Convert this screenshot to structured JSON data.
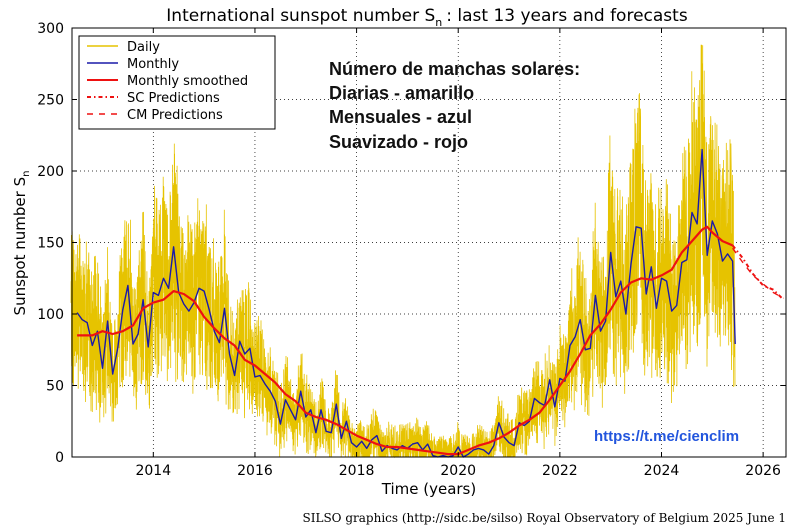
{
  "chart_data": {
    "type": "line",
    "title": "International sunspot number S",
    "title_sub": "n",
    "title_suffix": ": last 13 years and forecasts",
    "xlabel": "Time (years)",
    "ylabel": "Sunspot number S",
    "ylabel_sub": "n",
    "xlim": [
      2012.4,
      2026.45
    ],
    "ylim": [
      0,
      300
    ],
    "xticks": [
      2014,
      2016,
      2018,
      2020,
      2022,
      2024,
      2026
    ],
    "yticks": [
      0,
      50,
      100,
      150,
      200,
      250,
      300
    ],
    "grid": true,
    "legend_position": "top-left",
    "legend": [
      {
        "label": "Daily",
        "color": "#e6c300",
        "style": "solid"
      },
      {
        "label": "Monthly",
        "color": "#1a1aa8",
        "style": "solid"
      },
      {
        "label": "Monthly smoothed",
        "color": "#ee1111",
        "style": "solid"
      },
      {
        "label": "SC Predictions",
        "color": "#ee1111",
        "style": "dashdot"
      },
      {
        "label": "CM Predictions",
        "color": "#ee1111",
        "style": "dashed"
      }
    ],
    "annotation_lines": [
      "Número de manchas solares:",
      "Diarias - amarillo",
      "Mensuales - azul",
      "Suavizado - rojo"
    ],
    "url_text": "https://t.me/cienclim",
    "credit": "SILSO graphics (http://sidc.be/silso)  Royal Observatory of Belgium  2025 June 1",
    "series": [
      {
        "name": "Monthly",
        "color": "#1a1aa8",
        "points": [
          [
            2012.5,
            101
          ],
          [
            2012.6,
            96
          ],
          [
            2012.7,
            94
          ],
          [
            2012.8,
            78
          ],
          [
            2012.9,
            88
          ],
          [
            2013.0,
            62
          ],
          [
            2013.1,
            95
          ],
          [
            2013.2,
            58
          ],
          [
            2013.3,
            76
          ],
          [
            2013.4,
            103
          ],
          [
            2013.5,
            120
          ],
          [
            2013.6,
            79
          ],
          [
            2013.7,
            86
          ],
          [
            2013.8,
            110
          ],
          [
            2013.9,
            77
          ],
          [
            2014.0,
            115
          ],
          [
            2014.1,
            113
          ],
          [
            2014.2,
            125
          ],
          [
            2014.3,
            118
          ],
          [
            2014.4,
            147
          ],
          [
            2014.5,
            115
          ],
          [
            2014.6,
            107
          ],
          [
            2014.7,
            102
          ],
          [
            2014.8,
            108
          ],
          [
            2014.9,
            118
          ],
          [
            2015.0,
            116
          ],
          [
            2015.1,
            103
          ],
          [
            2015.2,
            88
          ],
          [
            2015.3,
            80
          ],
          [
            2015.4,
            104
          ],
          [
            2015.5,
            72
          ],
          [
            2015.6,
            57
          ],
          [
            2015.7,
            81
          ],
          [
            2015.8,
            72
          ],
          [
            2015.9,
            76
          ],
          [
            2016.0,
            56
          ],
          [
            2016.1,
            57
          ],
          [
            2016.2,
            51
          ],
          [
            2016.3,
            46
          ],
          [
            2016.4,
            39
          ],
          [
            2016.5,
            23
          ],
          [
            2016.6,
            40
          ],
          [
            2016.7,
            33
          ],
          [
            2016.8,
            26
          ],
          [
            2016.9,
            46
          ],
          [
            2017.0,
            28
          ],
          [
            2017.1,
            33
          ],
          [
            2017.2,
            17
          ],
          [
            2017.3,
            33
          ],
          [
            2017.4,
            18
          ],
          [
            2017.5,
            17
          ],
          [
            2017.6,
            37
          ],
          [
            2017.7,
            13
          ],
          [
            2017.8,
            25
          ],
          [
            2017.9,
            10
          ],
          [
            2018.0,
            7
          ],
          [
            2018.1,
            11
          ],
          [
            2018.2,
            6
          ],
          [
            2018.3,
            12
          ],
          [
            2018.4,
            15
          ],
          [
            2018.5,
            4
          ],
          [
            2018.6,
            8
          ],
          [
            2018.7,
            6
          ],
          [
            2018.8,
            5
          ],
          [
            2018.9,
            8
          ],
          [
            2019.0,
            6
          ],
          [
            2019.1,
            9
          ],
          [
            2019.2,
            10
          ],
          [
            2019.3,
            5
          ],
          [
            2019.4,
            9
          ],
          [
            2019.5,
            1
          ],
          [
            2019.6,
            0
          ],
          [
            2019.7,
            1
          ],
          [
            2019.8,
            0
          ],
          [
            2019.9,
            1
          ],
          [
            2020.0,
            7
          ],
          [
            2020.1,
            0
          ],
          [
            2020.2,
            2
          ],
          [
            2020.3,
            5
          ],
          [
            2020.4,
            6
          ],
          [
            2020.5,
            5
          ],
          [
            2020.6,
            2
          ],
          [
            2020.7,
            8
          ],
          [
            2020.8,
            24
          ],
          [
            2020.9,
            14
          ],
          [
            2021.0,
            10
          ],
          [
            2021.1,
            8
          ],
          [
            2021.2,
            24
          ],
          [
            2021.3,
            22
          ],
          [
            2021.4,
            25
          ],
          [
            2021.5,
            41
          ],
          [
            2021.6,
            38
          ],
          [
            2021.7,
            36
          ],
          [
            2021.8,
            54
          ],
          [
            2021.9,
            35
          ],
          [
            2022.0,
            55
          ],
          [
            2022.1,
            53
          ],
          [
            2022.2,
            78
          ],
          [
            2022.3,
            84
          ],
          [
            2022.4,
            96
          ],
          [
            2022.5,
            75
          ],
          [
            2022.6,
            76
          ],
          [
            2022.7,
            113
          ],
          [
            2022.8,
            88
          ],
          [
            2022.9,
            95
          ],
          [
            2023.0,
            143
          ],
          [
            2023.1,
            112
          ],
          [
            2023.2,
            123
          ],
          [
            2023.3,
            100
          ],
          [
            2023.4,
            135
          ],
          [
            2023.5,
            161
          ],
          [
            2023.6,
            160
          ],
          [
            2023.7,
            114
          ],
          [
            2023.8,
            133
          ],
          [
            2023.9,
            104
          ],
          [
            2024.0,
            125
          ],
          [
            2024.1,
            123
          ],
          [
            2024.2,
            102
          ],
          [
            2024.3,
            106
          ],
          [
            2024.4,
            136
          ],
          [
            2024.5,
            138
          ],
          [
            2024.6,
            171
          ],
          [
            2024.7,
            163
          ],
          [
            2024.8,
            215
          ],
          [
            2024.9,
            141
          ],
          [
            2025.0,
            165
          ],
          [
            2025.1,
            156
          ],
          [
            2025.2,
            137
          ],
          [
            2025.3,
            142
          ],
          [
            2025.4,
            137
          ],
          [
            2025.45,
            79
          ]
        ]
      },
      {
        "name": "Monthly smoothed",
        "color": "#ee1111",
        "points": [
          [
            2012.5,
            85
          ],
          [
            2012.8,
            85
          ],
          [
            2013.0,
            88
          ],
          [
            2013.2,
            86
          ],
          [
            2013.4,
            88
          ],
          [
            2013.6,
            92
          ],
          [
            2013.8,
            104
          ],
          [
            2014.0,
            108
          ],
          [
            2014.2,
            110
          ],
          [
            2014.4,
            116
          ],
          [
            2014.6,
            114
          ],
          [
            2014.8,
            109
          ],
          [
            2015.0,
            98
          ],
          [
            2015.2,
            90
          ],
          [
            2015.4,
            83
          ],
          [
            2015.6,
            78
          ],
          [
            2015.8,
            68
          ],
          [
            2016.0,
            64
          ],
          [
            2016.2,
            58
          ],
          [
            2016.4,
            52
          ],
          [
            2016.6,
            44
          ],
          [
            2016.8,
            39
          ],
          [
            2017.0,
            31
          ],
          [
            2017.2,
            28
          ],
          [
            2017.4,
            26
          ],
          [
            2017.6,
            23
          ],
          [
            2017.8,
            19
          ],
          [
            2018.0,
            15
          ],
          [
            2018.2,
            12
          ],
          [
            2018.4,
            9
          ],
          [
            2018.6,
            7
          ],
          [
            2018.8,
            7
          ],
          [
            2019.0,
            6
          ],
          [
            2019.2,
            5
          ],
          [
            2019.4,
            4
          ],
          [
            2019.6,
            3
          ],
          [
            2019.8,
            2
          ],
          [
            2020.0,
            2
          ],
          [
            2020.2,
            5
          ],
          [
            2020.4,
            8
          ],
          [
            2020.6,
            10
          ],
          [
            2020.8,
            13
          ],
          [
            2021.0,
            17
          ],
          [
            2021.2,
            22
          ],
          [
            2021.4,
            26
          ],
          [
            2021.6,
            31
          ],
          [
            2021.8,
            40
          ],
          [
            2022.0,
            50
          ],
          [
            2022.2,
            60
          ],
          [
            2022.4,
            72
          ],
          [
            2022.6,
            85
          ],
          [
            2022.8,
            93
          ],
          [
            2023.0,
            103
          ],
          [
            2023.2,
            115
          ],
          [
            2023.4,
            122
          ],
          [
            2023.6,
            125
          ],
          [
            2023.8,
            124
          ],
          [
            2024.0,
            127
          ],
          [
            2024.2,
            131
          ],
          [
            2024.4,
            143
          ],
          [
            2024.6,
            151
          ],
          [
            2024.8,
            159
          ],
          [
            2024.9,
            161
          ],
          [
            2025.0,
            157
          ],
          [
            2025.2,
            151
          ],
          [
            2025.4,
            148
          ]
        ]
      },
      {
        "name": "SC Predictions",
        "color": "#ee1111",
        "points": [
          [
            2025.4,
            148
          ],
          [
            2025.6,
            139
          ],
          [
            2025.8,
            128
          ],
          [
            2026.0,
            120
          ],
          [
            2026.2,
            117
          ],
          [
            2026.4,
            110
          ]
        ]
      },
      {
        "name": "CM Predictions",
        "color": "#ee1111",
        "points": [
          [
            2025.4,
            146
          ],
          [
            2025.6,
            136
          ],
          [
            2025.8,
            127
          ],
          [
            2026.0,
            121
          ],
          [
            2026.2,
            115
          ],
          [
            2026.4,
            111
          ]
        ]
      }
    ]
  }
}
